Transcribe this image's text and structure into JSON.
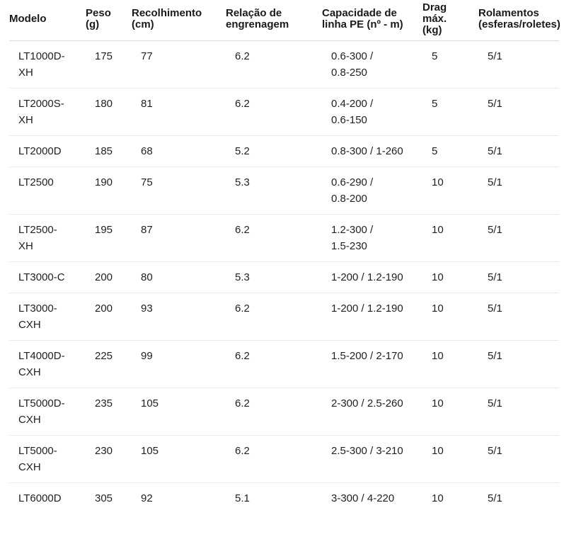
{
  "table": {
    "columns": [
      {
        "id": "modelo",
        "label": "Modelo"
      },
      {
        "id": "peso",
        "label": "Peso\n(g)"
      },
      {
        "id": "recolhimento",
        "label": "Recolhimento\n(cm)"
      },
      {
        "id": "relacao",
        "label": "Relação de\nengrenagem"
      },
      {
        "id": "capacidade",
        "label": "Capacidade de\nlinha PE (nº - m)"
      },
      {
        "id": "drag",
        "label": "Drag\nmáx.\n(kg)"
      },
      {
        "id": "rolamentos",
        "label": "Rolamentos\n(esferas/roletes)"
      }
    ],
    "rows": [
      {
        "cells": [
          "LT1000D-\nXH",
          "175",
          "77",
          "6.2",
          "0.6-300 /\n0.8-250",
          "5",
          "5/1"
        ]
      },
      {
        "cells": [
          "LT2000S-\nXH",
          "180",
          "81",
          "6.2",
          "0.4-200 /\n0.6-150",
          "5",
          "5/1"
        ]
      },
      {
        "cells": [
          "LT2000D",
          "185",
          "68",
          "5.2",
          "0.8-300 / 1-260",
          "5",
          "5/1"
        ]
      },
      {
        "cells": [
          "LT2500",
          "190",
          "75",
          "5.3",
          "0.6-290 /\n0.8-200",
          "10",
          "5/1"
        ]
      },
      {
        "cells": [
          "LT2500-\nXH",
          "195",
          "87",
          "6.2",
          "1.2-300 /\n1.5-230",
          "10",
          "5/1"
        ]
      },
      {
        "cells": [
          "LT3000-C",
          "200",
          "80",
          "5.3",
          "1-200 / 1.2-190",
          "10",
          "5/1"
        ]
      },
      {
        "cells": [
          "LT3000-\nCXH",
          "200",
          "93",
          "6.2",
          "1-200 / 1.2-190",
          "10",
          "5/1"
        ]
      },
      {
        "cells": [
          "LT4000D-\nCXH",
          "225",
          "99",
          "6.2",
          "1.5-200 / 2-170",
          "10",
          "5/1"
        ]
      },
      {
        "cells": [
          "LT5000D-\nCXH",
          "235",
          "105",
          "6.2",
          "2-300 / 2.5-260",
          "10",
          "5/1"
        ]
      },
      {
        "cells": [
          "LT5000-\nCXH",
          "230",
          "105",
          "6.2",
          "2.5-300 / 3-210",
          "10",
          "5/1"
        ]
      },
      {
        "cells": [
          "LT6000D",
          "305",
          "92",
          "5.1",
          "3-300 / 4-220",
          "10",
          "5/1"
        ]
      }
    ]
  },
  "colors": {
    "text": "#1a1a1a",
    "header_divider": "#dcdcdc",
    "row_divider": "#eaeaea",
    "background": "#ffffff"
  }
}
